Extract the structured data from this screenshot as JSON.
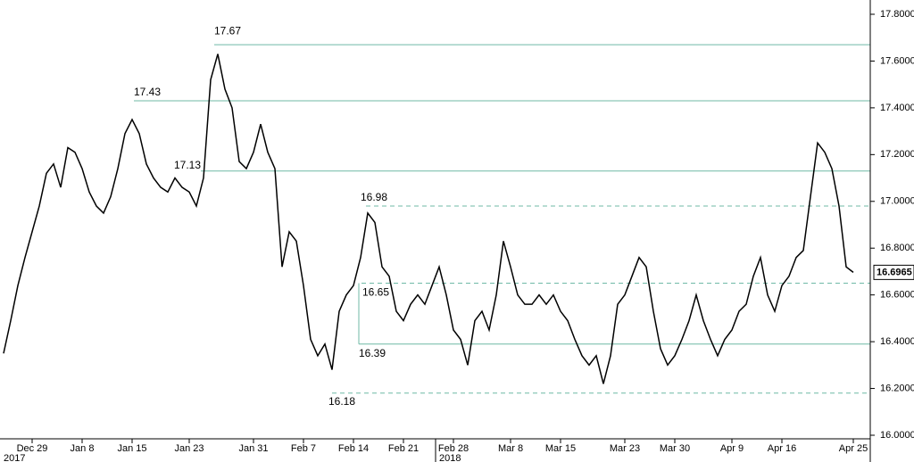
{
  "chart_data": {
    "type": "line",
    "categories": [
      null,
      null,
      null,
      null,
      "Dec 29",
      null,
      null,
      null,
      null,
      null,
      null,
      "Jan 8",
      null,
      null,
      null,
      null,
      null,
      null,
      "Jan 15",
      null,
      null,
      null,
      null,
      null,
      null,
      null,
      "Jan 23",
      null,
      null,
      null,
      null,
      null,
      null,
      null,
      null,
      "Jan 31",
      null,
      null,
      null,
      null,
      null,
      null,
      "Feb 7",
      null,
      null,
      null,
      null,
      null,
      null,
      "Feb 14",
      null,
      null,
      null,
      null,
      null,
      null,
      "Feb 21",
      null,
      null,
      null,
      null,
      null,
      null,
      "Feb 28",
      null,
      null,
      null,
      null,
      null,
      null,
      null,
      "Mar 8",
      null,
      null,
      null,
      null,
      null,
      null,
      "Mar 15",
      null,
      null,
      null,
      null,
      null,
      null,
      null,
      null,
      "Mar 23",
      null,
      null,
      null,
      null,
      null,
      null,
      "Mar 30",
      null,
      null,
      null,
      null,
      null,
      null,
      null,
      "Apr 9",
      null,
      null,
      null,
      null,
      null,
      null,
      "Apr 16",
      null,
      null,
      null,
      null,
      null,
      null,
      null,
      null,
      null,
      "Apr 25"
    ],
    "x_years": [
      "2017",
      "2018"
    ],
    "series": [
      {
        "color": "#000000",
        "values": [
          16.35,
          16.49,
          16.64,
          16.76,
          16.87,
          16.98,
          17.12,
          17.16,
          17.06,
          17.23,
          17.21,
          17.14,
          17.04,
          16.98,
          16.95,
          17.02,
          17.14,
          17.29,
          17.35,
          17.29,
          17.16,
          17.1,
          17.06,
          17.04,
          17.1,
          17.06,
          17.04,
          16.98,
          17.1,
          17.52,
          17.63,
          17.48,
          17.4,
          17.17,
          17.14,
          17.21,
          17.33,
          17.21,
          17.14,
          16.72,
          16.87,
          16.83,
          16.64,
          16.41,
          16.34,
          16.39,
          16.28,
          16.53,
          16.6,
          16.64,
          16.76,
          16.95,
          16.91,
          16.72,
          16.68,
          16.53,
          16.49,
          16.56,
          16.6,
          16.56,
          16.64,
          16.72,
          16.6,
          16.45,
          16.41,
          16.3,
          16.49,
          16.53,
          16.45,
          16.6,
          16.83,
          16.72,
          16.6,
          16.56,
          16.56,
          16.6,
          16.56,
          16.6,
          16.53,
          16.49,
          16.41,
          16.34,
          16.3,
          16.34,
          16.22,
          16.34,
          16.56,
          16.6,
          16.68,
          16.76,
          16.72,
          16.53,
          16.37,
          16.3,
          16.34,
          16.41,
          16.49,
          16.6,
          16.49,
          16.41,
          16.34,
          16.41,
          16.45,
          16.53,
          16.56,
          16.68,
          16.76,
          16.6,
          16.53,
          16.64,
          16.68,
          16.76,
          16.79,
          17.02,
          17.25,
          17.21,
          17.14,
          16.98,
          16.72,
          16.6965
        ]
      }
    ],
    "levels": [
      {
        "value": 17.67,
        "style": "solid"
      },
      {
        "value": 17.43,
        "style": "solid"
      },
      {
        "value": 17.13,
        "style": "solid"
      },
      {
        "value": 16.98,
        "style": "dashed"
      },
      {
        "value": 16.65,
        "style": "dashed"
      },
      {
        "value": 16.39,
        "style": "solid"
      },
      {
        "value": 16.18,
        "style": "dashed"
      }
    ],
    "level_color": "#6fb9a6",
    "ylim": [
      16.0,
      17.8
    ],
    "yticks": [
      {
        "value": 16.0,
        "label": "16.0000"
      },
      {
        "value": 16.2,
        "label": "16.2000"
      },
      {
        "value": 16.4,
        "label": "16.4000"
      },
      {
        "value": 16.6,
        "label": "16.6000"
      },
      {
        "value": 16.8,
        "label": "16.8000"
      },
      {
        "value": 17.0,
        "label": "17.0000"
      },
      {
        "value": 17.2,
        "label": "17.2000"
      },
      {
        "value": 17.4,
        "label": "17.4000"
      },
      {
        "value": 17.6,
        "label": "17.6000"
      },
      {
        "value": 17.8,
        "label": "17.8000"
      }
    ],
    "y_axis_side": "right"
  }
}
